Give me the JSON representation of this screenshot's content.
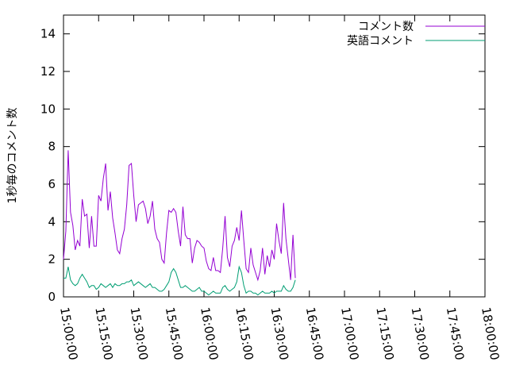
{
  "chart_data": {
    "type": "line",
    "title": "",
    "xlabel": "",
    "ylabel": "1秒毎のコメント数",
    "xlim": [
      "15:00:00",
      "18:00:00"
    ],
    "ylim": [
      0,
      15
    ],
    "x_ticks": [
      "15:00:00",
      "15:15:00",
      "15:30:00",
      "15:45:00",
      "16:00:00",
      "16:15:00",
      "16:30:00",
      "16:45:00",
      "17:00:00",
      "17:15:00",
      "17:30:00",
      "17:45:00",
      "18:00:00"
    ],
    "y_ticks": [
      "0",
      "2",
      "4",
      "6",
      "8",
      "10",
      "12",
      "14"
    ],
    "legend_position": "top-right",
    "grid": false,
    "series": [
      {
        "name": "コメント数",
        "color": "#9400d3",
        "points": [
          [
            "15:00:00",
            2.0
          ],
          [
            "15:01:00",
            3.5
          ],
          [
            "15:02:00",
            7.8
          ],
          [
            "15:03:00",
            4.5
          ],
          [
            "15:04:00",
            3.8
          ],
          [
            "15:05:00",
            2.5
          ],
          [
            "15:06:00",
            3.0
          ],
          [
            "15:07:00",
            2.7
          ],
          [
            "15:08:00",
            5.2
          ],
          [
            "15:09:00",
            4.3
          ],
          [
            "15:10:00",
            4.4
          ],
          [
            "15:11:00",
            2.6
          ],
          [
            "15:12:00",
            4.3
          ],
          [
            "15:13:00",
            2.7
          ],
          [
            "15:14:00",
            2.7
          ],
          [
            "15:15:00",
            5.4
          ],
          [
            "15:16:00",
            5.1
          ],
          [
            "15:17:00",
            6.3
          ],
          [
            "15:18:00",
            7.1
          ],
          [
            "15:19:00",
            4.6
          ],
          [
            "15:20:00",
            5.6
          ],
          [
            "15:21:00",
            4.2
          ],
          [
            "15:22:00",
            3.4
          ],
          [
            "15:23:00",
            2.5
          ],
          [
            "15:24:00",
            2.3
          ],
          [
            "15:25:00",
            3.1
          ],
          [
            "15:26:00",
            3.6
          ],
          [
            "15:27:00",
            4.9
          ],
          [
            "15:28:00",
            7.0
          ],
          [
            "15:29:00",
            7.1
          ],
          [
            "15:30:00",
            5.4
          ],
          [
            "15:31:00",
            4.0
          ],
          [
            "15:32:00",
            4.9
          ],
          [
            "15:33:00",
            5.0
          ],
          [
            "15:34:00",
            5.1
          ],
          [
            "15:35:00",
            4.7
          ],
          [
            "15:36:00",
            3.9
          ],
          [
            "15:37:00",
            4.3
          ],
          [
            "15:38:00",
            5.1
          ],
          [
            "15:39:00",
            3.6
          ],
          [
            "15:40:00",
            3.1
          ],
          [
            "15:41:00",
            2.9
          ],
          [
            "15:42:00",
            2.0
          ],
          [
            "15:43:00",
            1.8
          ],
          [
            "15:44:00",
            3.4
          ],
          [
            "15:45:00",
            4.6
          ],
          [
            "15:46:00",
            4.5
          ],
          [
            "15:47:00",
            4.7
          ],
          [
            "15:48:00",
            4.5
          ],
          [
            "15:49:00",
            3.5
          ],
          [
            "15:50:00",
            2.7
          ],
          [
            "15:51:00",
            4.8
          ],
          [
            "15:52:00",
            3.3
          ],
          [
            "15:53:00",
            3.1
          ],
          [
            "15:54:00",
            3.1
          ],
          [
            "15:55:00",
            1.8
          ],
          [
            "15:56:00",
            2.6
          ],
          [
            "15:57:00",
            3.0
          ],
          [
            "15:58:00",
            2.9
          ],
          [
            "15:59:00",
            2.7
          ],
          [
            "16:00:00",
            2.6
          ],
          [
            "16:01:00",
            1.9
          ],
          [
            "16:02:00",
            1.5
          ],
          [
            "16:03:00",
            1.4
          ],
          [
            "16:04:00",
            2.1
          ],
          [
            "16:05:00",
            1.4
          ],
          [
            "16:06:00",
            1.4
          ],
          [
            "16:07:00",
            1.3
          ],
          [
            "16:08:00",
            2.6
          ],
          [
            "16:09:00",
            4.3
          ],
          [
            "16:10:00",
            2.1
          ],
          [
            "16:11:00",
            1.6
          ],
          [
            "16:12:00",
            2.7
          ],
          [
            "16:13:00",
            3.0
          ],
          [
            "16:14:00",
            3.7
          ],
          [
            "16:15:00",
            3.0
          ],
          [
            "16:16:00",
            4.6
          ],
          [
            "16:17:00",
            3.0
          ],
          [
            "16:18:00",
            1.5
          ],
          [
            "16:19:00",
            1.3
          ],
          [
            "16:20:00",
            2.6
          ],
          [
            "16:21:00",
            1.7
          ],
          [
            "16:22:00",
            1.3
          ],
          [
            "16:23:00",
            0.9
          ],
          [
            "16:24:00",
            1.4
          ],
          [
            "16:25:00",
            2.6
          ],
          [
            "16:26:00",
            1.2
          ],
          [
            "16:27:00",
            2.2
          ],
          [
            "16:28:00",
            1.6
          ],
          [
            "16:29:00",
            2.5
          ],
          [
            "16:30:00",
            2.0
          ],
          [
            "16:31:00",
            3.9
          ],
          [
            "16:32:00",
            3.0
          ],
          [
            "16:33:00",
            2.3
          ],
          [
            "16:34:00",
            5.0
          ],
          [
            "16:35:00",
            3.1
          ],
          [
            "16:36:00",
            2.0
          ],
          [
            "16:37:00",
            0.9
          ],
          [
            "16:38:00",
            3.3
          ],
          [
            "16:39:00",
            1.0
          ]
        ]
      },
      {
        "name": "英語コメント",
        "color": "#009e73",
        "points": [
          [
            "15:00:00",
            1.0
          ],
          [
            "15:01:00",
            1.0
          ],
          [
            "15:02:00",
            1.6
          ],
          [
            "15:03:00",
            0.9
          ],
          [
            "15:04:00",
            0.7
          ],
          [
            "15:05:00",
            0.6
          ],
          [
            "15:06:00",
            0.7
          ],
          [
            "15:07:00",
            1.0
          ],
          [
            "15:08:00",
            1.2
          ],
          [
            "15:09:00",
            1.0
          ],
          [
            "15:10:00",
            0.8
          ],
          [
            "15:11:00",
            0.5
          ],
          [
            "15:12:00",
            0.6
          ],
          [
            "15:13:00",
            0.6
          ],
          [
            "15:14:00",
            0.4
          ],
          [
            "15:15:00",
            0.5
          ],
          [
            "15:16:00",
            0.7
          ],
          [
            "15:17:00",
            0.6
          ],
          [
            "15:18:00",
            0.5
          ],
          [
            "15:19:00",
            0.6
          ],
          [
            "15:20:00",
            0.7
          ],
          [
            "15:21:00",
            0.5
          ],
          [
            "15:22:00",
            0.7
          ],
          [
            "15:23:00",
            0.6
          ],
          [
            "15:24:00",
            0.6
          ],
          [
            "15:25:00",
            0.7
          ],
          [
            "15:26:00",
            0.7
          ],
          [
            "15:27:00",
            0.8
          ],
          [
            "15:28:00",
            0.8
          ],
          [
            "15:29:00",
            0.9
          ],
          [
            "15:30:00",
            0.6
          ],
          [
            "15:31:00",
            0.7
          ],
          [
            "15:32:00",
            0.8
          ],
          [
            "15:33:00",
            0.7
          ],
          [
            "15:34:00",
            0.6
          ],
          [
            "15:35:00",
            0.5
          ],
          [
            "15:36:00",
            0.6
          ],
          [
            "15:37:00",
            0.7
          ],
          [
            "15:38:00",
            0.5
          ],
          [
            "15:39:00",
            0.5
          ],
          [
            "15:40:00",
            0.4
          ],
          [
            "15:41:00",
            0.3
          ],
          [
            "15:42:00",
            0.3
          ],
          [
            "15:43:00",
            0.4
          ],
          [
            "15:44:00",
            0.6
          ],
          [
            "15:45:00",
            0.8
          ],
          [
            "15:46:00",
            1.3
          ],
          [
            "15:47:00",
            1.5
          ],
          [
            "15:48:00",
            1.3
          ],
          [
            "15:49:00",
            0.9
          ],
          [
            "15:50:00",
            0.5
          ],
          [
            "15:51:00",
            0.5
          ],
          [
            "15:52:00",
            0.6
          ],
          [
            "15:53:00",
            0.5
          ],
          [
            "15:54:00",
            0.4
          ],
          [
            "15:55:00",
            0.3
          ],
          [
            "15:56:00",
            0.3
          ],
          [
            "15:57:00",
            0.4
          ],
          [
            "15:58:00",
            0.5
          ],
          [
            "15:59:00",
            0.3
          ],
          [
            "16:00:00",
            0.3
          ],
          [
            "16:01:00",
            0.2
          ],
          [
            "16:02:00",
            0.1
          ],
          [
            "16:03:00",
            0.2
          ],
          [
            "16:04:00",
            0.3
          ],
          [
            "16:05:00",
            0.2
          ],
          [
            "16:06:00",
            0.2
          ],
          [
            "16:07:00",
            0.2
          ],
          [
            "16:08:00",
            0.5
          ],
          [
            "16:09:00",
            0.6
          ],
          [
            "16:10:00",
            0.4
          ],
          [
            "16:11:00",
            0.3
          ],
          [
            "16:12:00",
            0.4
          ],
          [
            "16:13:00",
            0.5
          ],
          [
            "16:14:00",
            0.8
          ],
          [
            "16:15:00",
            1.6
          ],
          [
            "16:16:00",
            1.3
          ],
          [
            "16:17:00",
            0.6
          ],
          [
            "16:18:00",
            0.2
          ],
          [
            "16:19:00",
            0.3
          ],
          [
            "16:20:00",
            0.3
          ],
          [
            "16:21:00",
            0.2
          ],
          [
            "16:22:00",
            0.2
          ],
          [
            "16:23:00",
            0.1
          ],
          [
            "16:24:00",
            0.2
          ],
          [
            "16:25:00",
            0.3
          ],
          [
            "16:26:00",
            0.2
          ],
          [
            "16:27:00",
            0.2
          ],
          [
            "16:28:00",
            0.2
          ],
          [
            "16:29:00",
            0.3
          ],
          [
            "16:30:00",
            0.2
          ],
          [
            "16:31:00",
            0.3
          ],
          [
            "16:32:00",
            0.3
          ],
          [
            "16:33:00",
            0.3
          ],
          [
            "16:34:00",
            0.6
          ],
          [
            "16:35:00",
            0.4
          ],
          [
            "16:36:00",
            0.3
          ],
          [
            "16:37:00",
            0.3
          ],
          [
            "16:38:00",
            0.5
          ],
          [
            "16:39:00",
            0.9
          ]
        ]
      }
    ]
  }
}
